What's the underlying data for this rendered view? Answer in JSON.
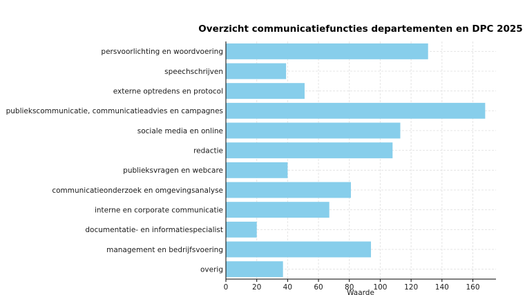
{
  "chart_data": {
    "type": "bar",
    "orientation": "horizontal",
    "title": "Overzicht communicatiefuncties departementen en DPC 2025",
    "xlabel": "Waarde",
    "ylabel": "",
    "xlim": [
      0,
      175
    ],
    "xticks": [
      0,
      20,
      40,
      60,
      80,
      100,
      120,
      140,
      160
    ],
    "grid": true,
    "bar_color": "#87ceeb",
    "categories": [
      "persvoorlichting en woordvoering",
      "speechschrijven",
      "externe optredens en protocol",
      "publiekscommunicatie, communicatieadvies en campagnes",
      "sociale media en online",
      "redactie",
      "publieksvragen en webcare",
      "communicatieonderzoek en omgevingsanalyse",
      "interne en corporate communicatie",
      "documentatie- en informatiespecialist",
      "management en bedrijfsvoering",
      "overig"
    ],
    "values": [
      131,
      39,
      51,
      168,
      113,
      108,
      40,
      81,
      67,
      20,
      94,
      37
    ]
  }
}
